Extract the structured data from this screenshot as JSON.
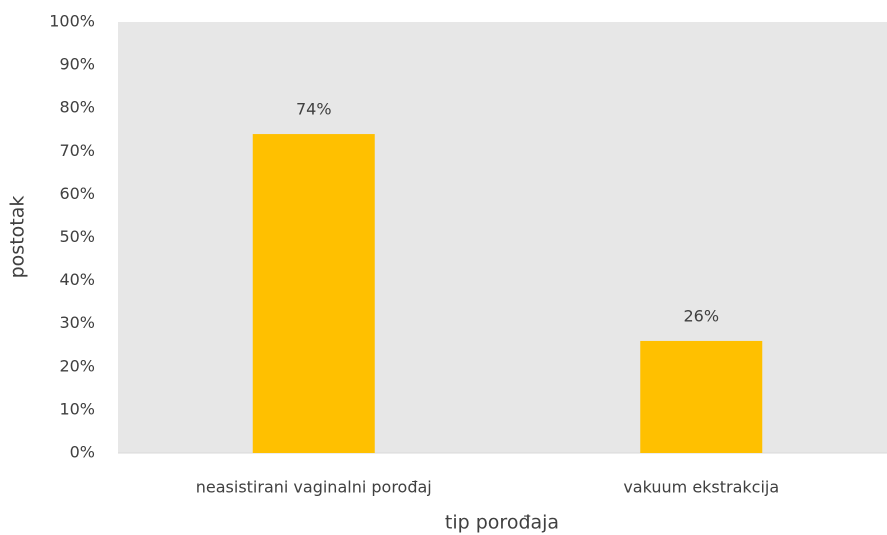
{
  "chart_data": {
    "type": "bar",
    "x_label": "tip porođaja",
    "y_label": "postotak",
    "categories": [
      "neasistirani vaginalni porođaj",
      "vakuum ekstrakcija"
    ],
    "values": [
      74,
      26
    ],
    "value_labels": [
      "74%",
      "26%"
    ],
    "color": "#ffc000",
    "ylim": [
      0,
      100
    ],
    "yticks": [
      {
        "value": 0,
        "label": "0%"
      },
      {
        "value": 10,
        "label": "10%"
      },
      {
        "value": 20,
        "label": "20%"
      },
      {
        "value": 30,
        "label": "30%"
      },
      {
        "value": 40,
        "label": "40%"
      },
      {
        "value": 50,
        "label": "50%"
      },
      {
        "value": 60,
        "label": "60%"
      },
      {
        "value": 70,
        "label": "70%"
      },
      {
        "value": 80,
        "label": "80%"
      },
      {
        "value": 90,
        "label": "90%"
      },
      {
        "value": 100,
        "label": "100%"
      }
    ],
    "grid": false
  }
}
